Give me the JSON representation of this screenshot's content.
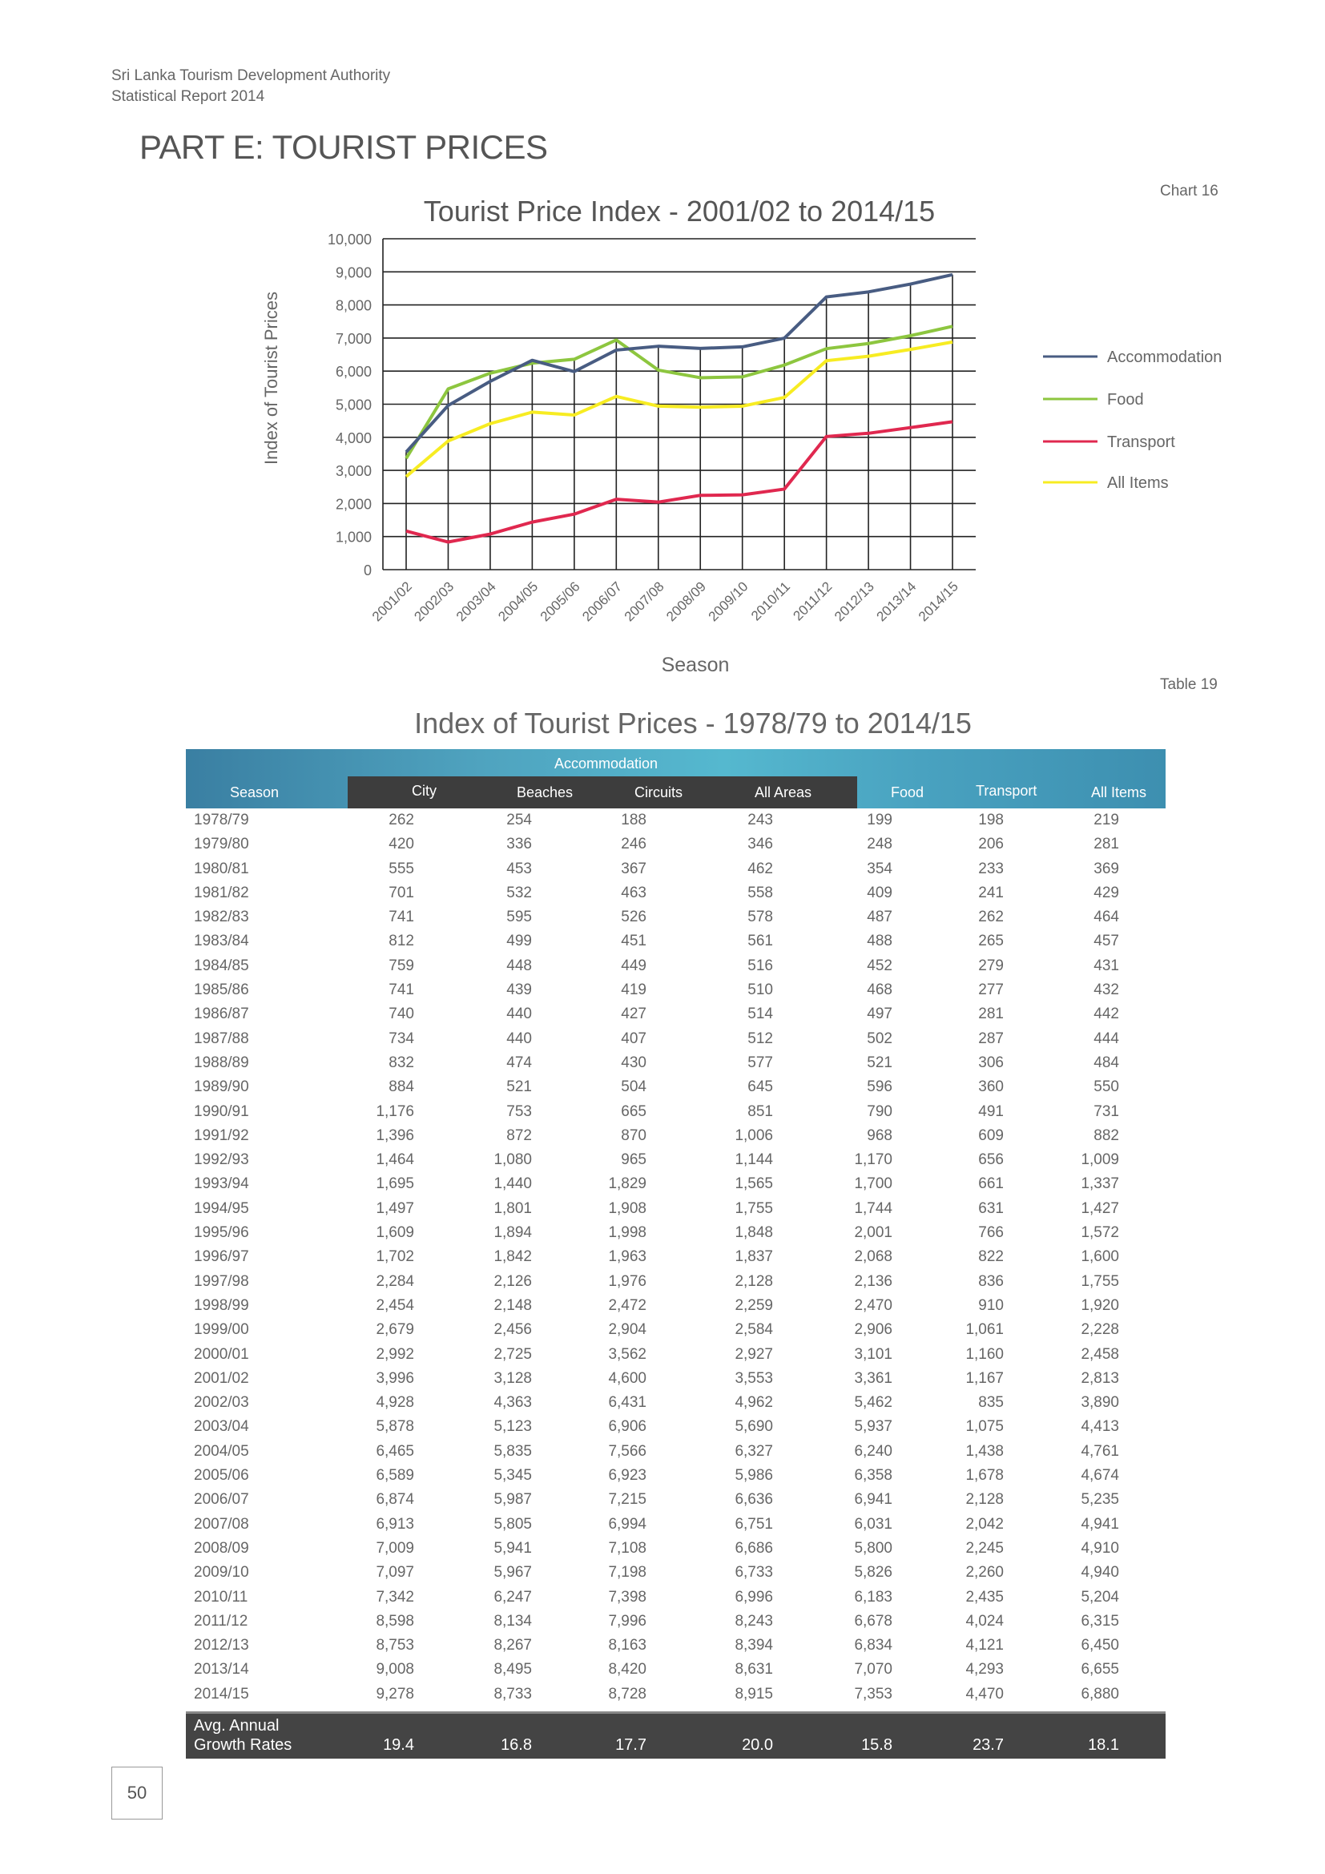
{
  "header": {
    "org": "Sri Lanka Tourism Development Authority",
    "report": "Statistical Report 2014"
  },
  "part_title": "PART E: TOURIST PRICES",
  "chart_label": "Chart 16",
  "table_label": "Table 19",
  "page_number": "50",
  "chart_data": {
    "type": "line",
    "title": "Tourist Price Index - 2001/02 to 2014/15",
    "xlabel": "Season",
    "ylabel": "Index of Tourist Prices",
    "ylim": [
      0,
      10000
    ],
    "yticks": [
      "0",
      "1,000",
      "2,000",
      "3,000",
      "4,000",
      "5,000",
      "6,000",
      "7,000",
      "8,000",
      "9,000",
      "10,000"
    ],
    "grid": true,
    "legend_position": "right",
    "categories": [
      "2001/02",
      "2002/03",
      "2003/04",
      "2004/05",
      "2005/06",
      "2006/07",
      "2007/08",
      "2008/09",
      "2009/10",
      "2010/11",
      "2011/12",
      "2012/13",
      "2013/14",
      "2014/15"
    ],
    "series": [
      {
        "name": "Accommodation",
        "color": "#485c82",
        "values": [
          3553,
          4962,
          5690,
          6327,
          5986,
          6636,
          6751,
          6686,
          6733,
          6996,
          8243,
          8394,
          8631,
          8915
        ]
      },
      {
        "name": "Food",
        "color": "#8dc63f",
        "values": [
          3361,
          5462,
          5937,
          6240,
          6358,
          6941,
          6031,
          5800,
          5826,
          6183,
          6678,
          6834,
          7070,
          7353
        ]
      },
      {
        "name": "Transport",
        "color": "#e0284f",
        "values": [
          1167,
          835,
          1075,
          1438,
          1678,
          2128,
          2042,
          2245,
          2260,
          2435,
          4024,
          4121,
          4293,
          4470
        ]
      },
      {
        "name": "All Items",
        "color": "#f7ec22",
        "values": [
          2813,
          3890,
          4413,
          4761,
          4674,
          5235,
          4941,
          4910,
          4940,
          5204,
          6315,
          6450,
          6655,
          6880
        ]
      }
    ]
  },
  "table": {
    "title": "Index of Tourist Prices - 1978/79 to 2014/15",
    "group_header": "Accommodation",
    "columns": [
      "Season",
      "City",
      "Beaches",
      "Circuits",
      "All Areas",
      "Food",
      "Transport",
      "All Items"
    ],
    "rows": [
      [
        "1978/79",
        "262",
        "254",
        "188",
        "243",
        "199",
        "198",
        "219"
      ],
      [
        "1979/80",
        "420",
        "336",
        "246",
        "346",
        "248",
        "206",
        "281"
      ],
      [
        "1980/81",
        "555",
        "453",
        "367",
        "462",
        "354",
        "233",
        "369"
      ],
      [
        "1981/82",
        "701",
        "532",
        "463",
        "558",
        "409",
        "241",
        "429"
      ],
      [
        "1982/83",
        "741",
        "595",
        "526",
        "578",
        "487",
        "262",
        "464"
      ],
      [
        "1983/84",
        "812",
        "499",
        "451",
        "561",
        "488",
        "265",
        "457"
      ],
      [
        "1984/85",
        "759",
        "448",
        "449",
        "516",
        "452",
        "279",
        "431"
      ],
      [
        "1985/86",
        "741",
        "439",
        "419",
        "510",
        "468",
        "277",
        "432"
      ],
      [
        "1986/87",
        "740",
        "440",
        "427",
        "514",
        "497",
        "281",
        "442"
      ],
      [
        "1987/88",
        "734",
        "440",
        "407",
        "512",
        "502",
        "287",
        "444"
      ],
      [
        "1988/89",
        "832",
        "474",
        "430",
        "577",
        "521",
        "306",
        "484"
      ],
      [
        "1989/90",
        "884",
        "521",
        "504",
        "645",
        "596",
        "360",
        "550"
      ],
      [
        "1990/91",
        "1,176",
        "753",
        "665",
        "851",
        "790",
        "491",
        "731"
      ],
      [
        "1991/92",
        "1,396",
        "872",
        "870",
        "1,006",
        "968",
        "609",
        "882"
      ],
      [
        "1992/93",
        "1,464",
        "1,080",
        "965",
        "1,144",
        "1,170",
        "656",
        "1,009"
      ],
      [
        "1993/94",
        "1,695",
        "1,440",
        "1,829",
        "1,565",
        "1,700",
        "661",
        "1,337"
      ],
      [
        "1994/95",
        "1,497",
        "1,801",
        "1,908",
        "1,755",
        "1,744",
        "631",
        "1,427"
      ],
      [
        "1995/96",
        "1,609",
        "1,894",
        "1,998",
        "1,848",
        "2,001",
        "766",
        "1,572"
      ],
      [
        "1996/97",
        "1,702",
        "1,842",
        "1,963",
        "1,837",
        "2,068",
        "822",
        "1,600"
      ],
      [
        "1997/98",
        "2,284",
        "2,126",
        "1,976",
        "2,128",
        "2,136",
        "836",
        "1,755"
      ],
      [
        "1998/99",
        "2,454",
        "2,148",
        "2,472",
        "2,259",
        "2,470",
        "910",
        "1,920"
      ],
      [
        "1999/00",
        "2,679",
        "2,456",
        "2,904",
        "2,584",
        "2,906",
        "1,061",
        "2,228"
      ],
      [
        "2000/01",
        "2,992",
        "2,725",
        "3,562",
        "2,927",
        "3,101",
        "1,160",
        "2,458"
      ],
      [
        "2001/02",
        "3,996",
        "3,128",
        "4,600",
        "3,553",
        "3,361",
        "1,167",
        "2,813"
      ],
      [
        "2002/03",
        "4,928",
        "4,363",
        "6,431",
        "4,962",
        "5,462",
        "835",
        "3,890"
      ],
      [
        "2003/04",
        "5,878",
        "5,123",
        "6,906",
        "5,690",
        "5,937",
        "1,075",
        "4,413"
      ],
      [
        "2004/05",
        "6,465",
        "5,835",
        "7,566",
        "6,327",
        "6,240",
        "1,438",
        "4,761"
      ],
      [
        "2005/06",
        "6,589",
        "5,345",
        "6,923",
        "5,986",
        "6,358",
        "1,678",
        "4,674"
      ],
      [
        "2006/07",
        "6,874",
        "5,987",
        "7,215",
        "6,636",
        "6,941",
        "2,128",
        "5,235"
      ],
      [
        "2007/08",
        "6,913",
        "5,805",
        "6,994",
        "6,751",
        "6,031",
        "2,042",
        "4,941"
      ],
      [
        "2008/09",
        "7,009",
        "5,941",
        "7,108",
        "6,686",
        "5,800",
        "2,245",
        "4,910"
      ],
      [
        "2009/10",
        "7,097",
        "5,967",
        "7,198",
        "6,733",
        "5,826",
        "2,260",
        "4,940"
      ],
      [
        "2010/11",
        "7,342",
        "6,247",
        "7,398",
        "6,996",
        "6,183",
        "2,435",
        "5,204"
      ],
      [
        "2011/12",
        "8,598",
        "8,134",
        "7,996",
        "8,243",
        "6,678",
        "4,024",
        "6,315"
      ],
      [
        "2012/13",
        "8,753",
        "8,267",
        "8,163",
        "8,394",
        "6,834",
        "4,121",
        "6,450"
      ],
      [
        "2013/14",
        "9,008",
        "8,495",
        "8,420",
        "8,631",
        "7,070",
        "4,293",
        "6,655"
      ],
      [
        "2014/15",
        "9,278",
        "8,733",
        "8,728",
        "8,915",
        "7,353",
        "4,470",
        "6,880"
      ]
    ],
    "footer": {
      "label_line1": "Avg. Annual",
      "label_line2": "Growth Rates",
      "values": [
        "19.4",
        "16.8",
        "17.7",
        "20.0",
        "15.8",
        "23.7",
        "18.1"
      ]
    }
  }
}
